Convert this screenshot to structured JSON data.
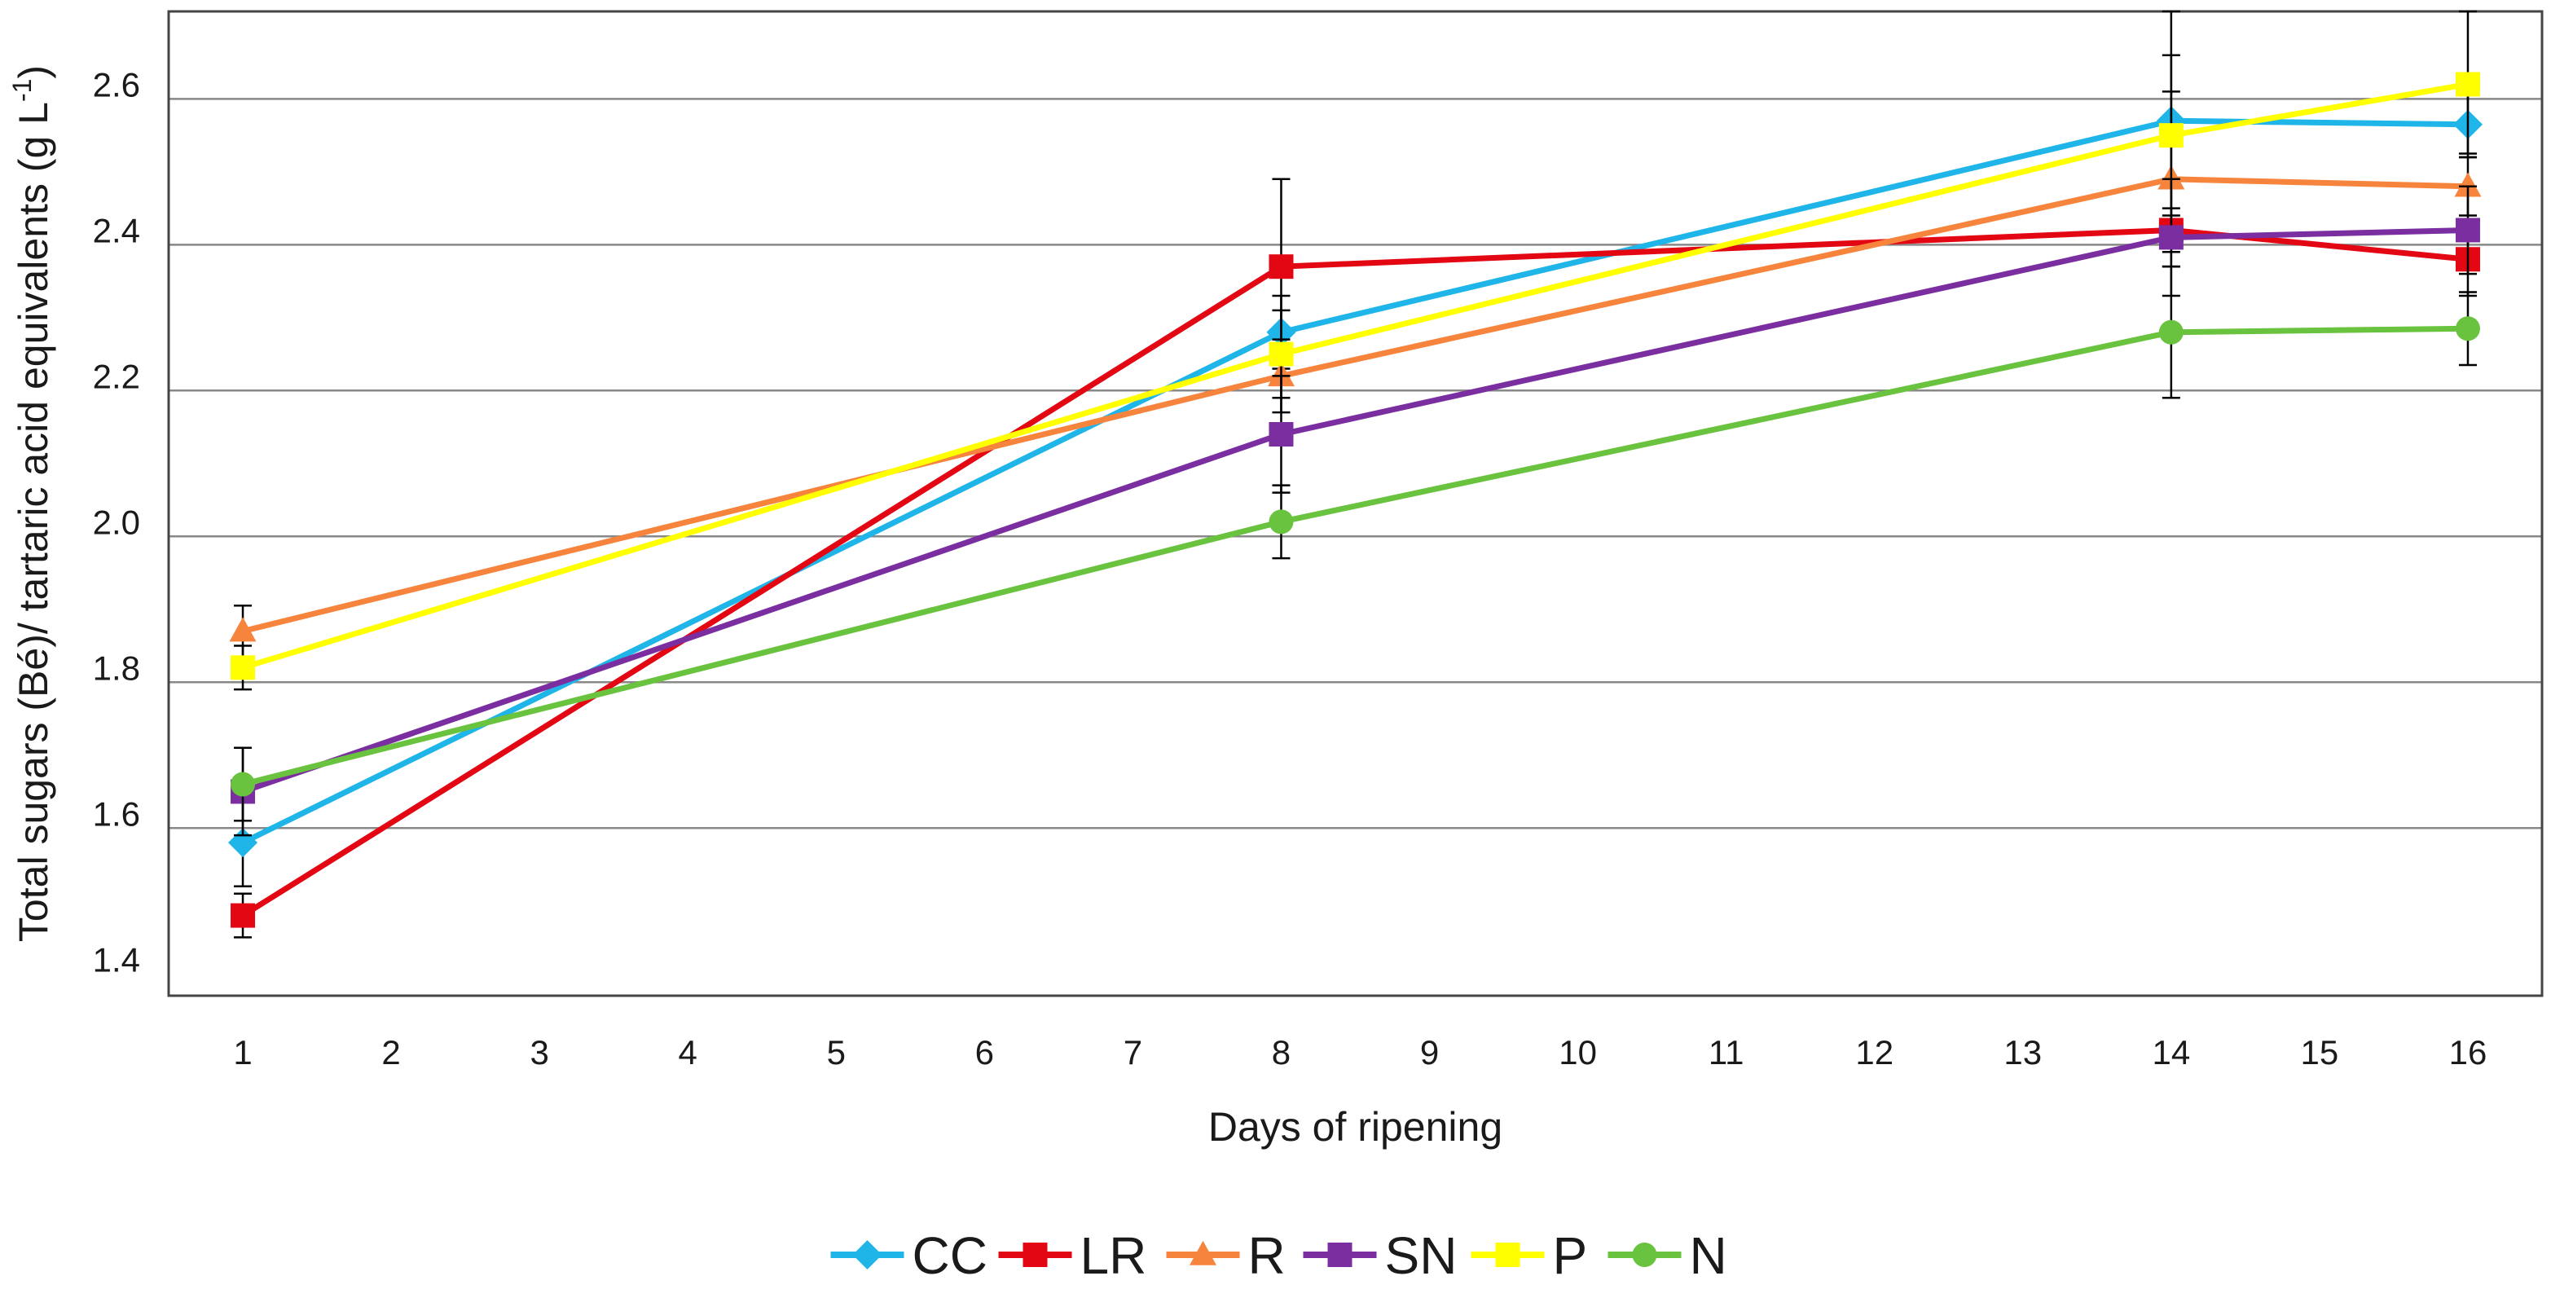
{
  "chart_data": {
    "type": "line",
    "title": "",
    "xlabel": "Days of ripening",
    "ylabel": "Total sugars (Bé)/ tartaric acid equivalents (g L",
    "ylabel_superscript": "-1",
    "ylabel_close": ")",
    "x_ticks": [
      1,
      2,
      3,
      4,
      5,
      6,
      7,
      8,
      9,
      10,
      11,
      12,
      13,
      14,
      15,
      16
    ],
    "xlim": [
      0.5,
      16.5
    ],
    "y_ticks": [
      1.4,
      1.6,
      1.8,
      2.0,
      2.2,
      2.4,
      2.6
    ],
    "y_tick_labels": [
      "1.4",
      "1.6",
      "1.8",
      "2.0",
      "2.2",
      "2.4",
      "2.6"
    ],
    "ylim": [
      1.35,
      2.7
    ],
    "gridlines_at": [
      1.58,
      1.78,
      1.98,
      2.18,
      2.38,
      2.58
    ],
    "legend_position": "bottom-center",
    "x": [
      1,
      8,
      14,
      16
    ],
    "series": [
      {
        "name": "CC",
        "color": "#1fb5e8",
        "marker": "diamond",
        "values": [
          1.56,
          2.26,
          2.55,
          2.545
        ],
        "errors": [
          0.06,
          0.05,
          0.15,
          0.04
        ]
      },
      {
        "name": "LR",
        "color": "#e30613",
        "marker": "square",
        "values": [
          1.46,
          2.35,
          2.4,
          2.36
        ],
        "errors": [
          0.03,
          0.12,
          0.03,
          0.05
        ]
      },
      {
        "name": "R",
        "color": "#f7843c",
        "marker": "triangle",
        "values": [
          1.85,
          2.2,
          2.47,
          2.46
        ],
        "errors": [
          0.035,
          0.05,
          0.12,
          0.04
        ]
      },
      {
        "name": "SN",
        "color": "#7a2ea0",
        "marker": "square",
        "values": [
          1.63,
          2.12,
          2.39,
          2.4
        ],
        "errors": [
          0.06,
          0.08,
          0.08,
          0.06
        ]
      },
      {
        "name": "P",
        "color": "#ffff00",
        "marker": "square",
        "values": [
          1.8,
          2.23,
          2.53,
          2.6
        ],
        "errors": [
          0.03,
          0.06,
          0.11,
          0.1
        ]
      },
      {
        "name": "N",
        "color": "#6ac33e",
        "marker": "circle",
        "values": [
          1.64,
          2.0,
          2.26,
          2.265
        ],
        "errors": [
          0.05,
          0.05,
          0.09,
          0.05
        ]
      }
    ]
  }
}
